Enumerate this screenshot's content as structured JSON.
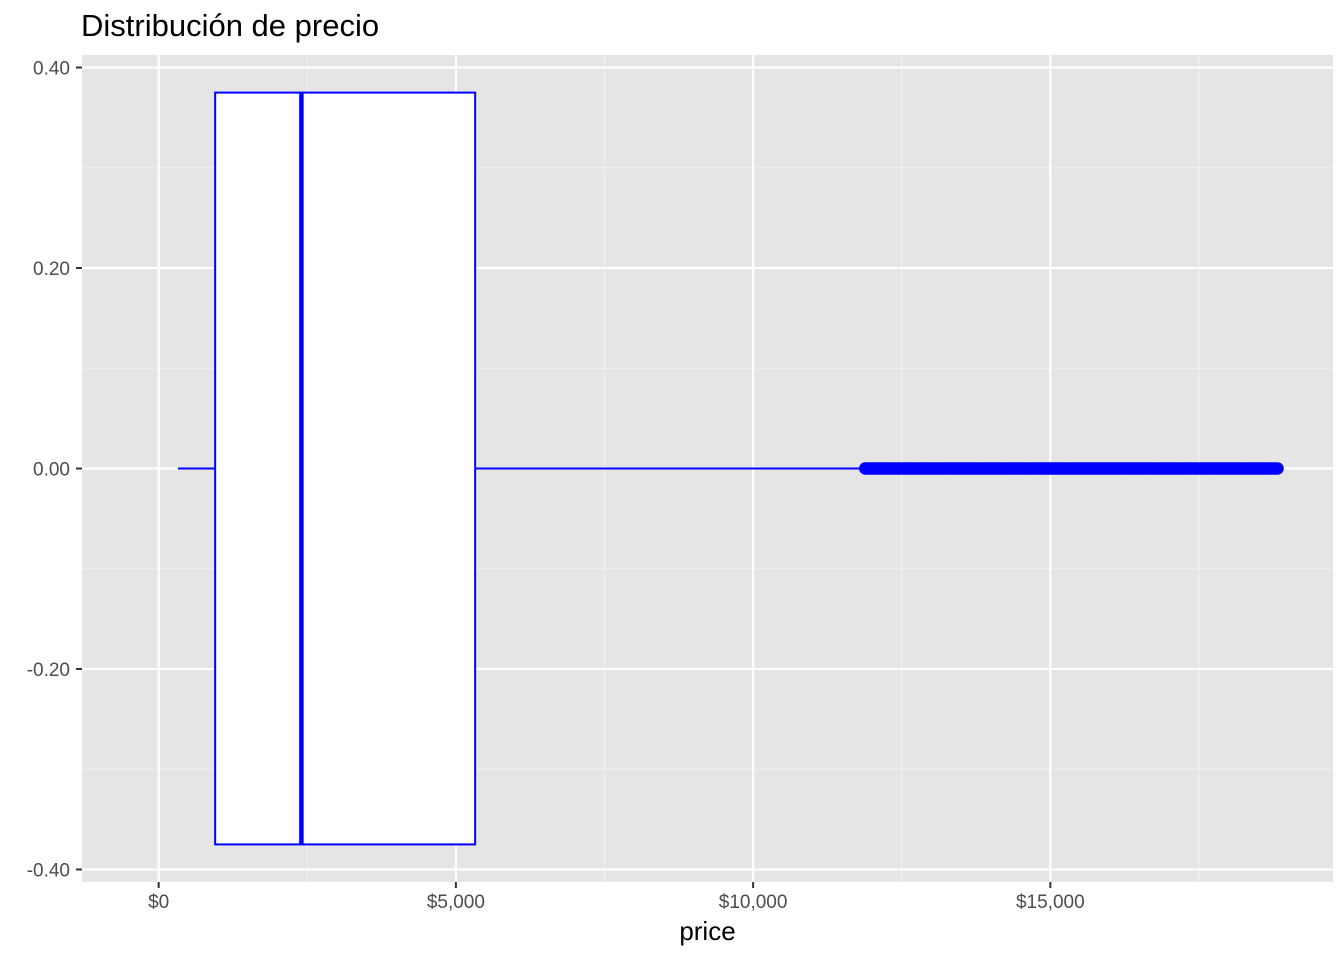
{
  "chart_data": {
    "type": "boxplot",
    "title": "Distribución de precio",
    "xlabel": "price",
    "ylabel": "",
    "orientation": "horizontal",
    "xlim": [
      -1290,
      19755
    ],
    "ylim": [
      -0.4125,
      0.4125
    ],
    "x_ticks": [
      {
        "value": 0,
        "label": "$0"
      },
      {
        "value": 5000,
        "label": "$5,000"
      },
      {
        "value": 10000,
        "label": "$10,000"
      },
      {
        "value": 15000,
        "label": "$15,000"
      }
    ],
    "y_ticks": [
      {
        "value": 0.4,
        "label": "0.40"
      },
      {
        "value": 0.2,
        "label": "0.20"
      },
      {
        "value": 0.0,
        "label": "0.00"
      },
      {
        "value": -0.2,
        "label": "-0.20"
      },
      {
        "value": -0.4,
        "label": "-0.40"
      }
    ],
    "box": {
      "min": 326,
      "q1": 950,
      "median": 2401,
      "q3": 5324,
      "whisker_high": 11886,
      "y_center": 0.0,
      "half_height": 0.375
    },
    "outliers": {
      "range": [
        11886,
        18823
      ],
      "y": 0.0
    },
    "grid": true,
    "legend": "none",
    "colors": {
      "box_stroke": "#0000ff",
      "box_fill": "#ffffff",
      "panel_bg": "#e5e5e5",
      "grid_major": "#ffffff",
      "grid_minor": "#f2f2f2"
    }
  }
}
